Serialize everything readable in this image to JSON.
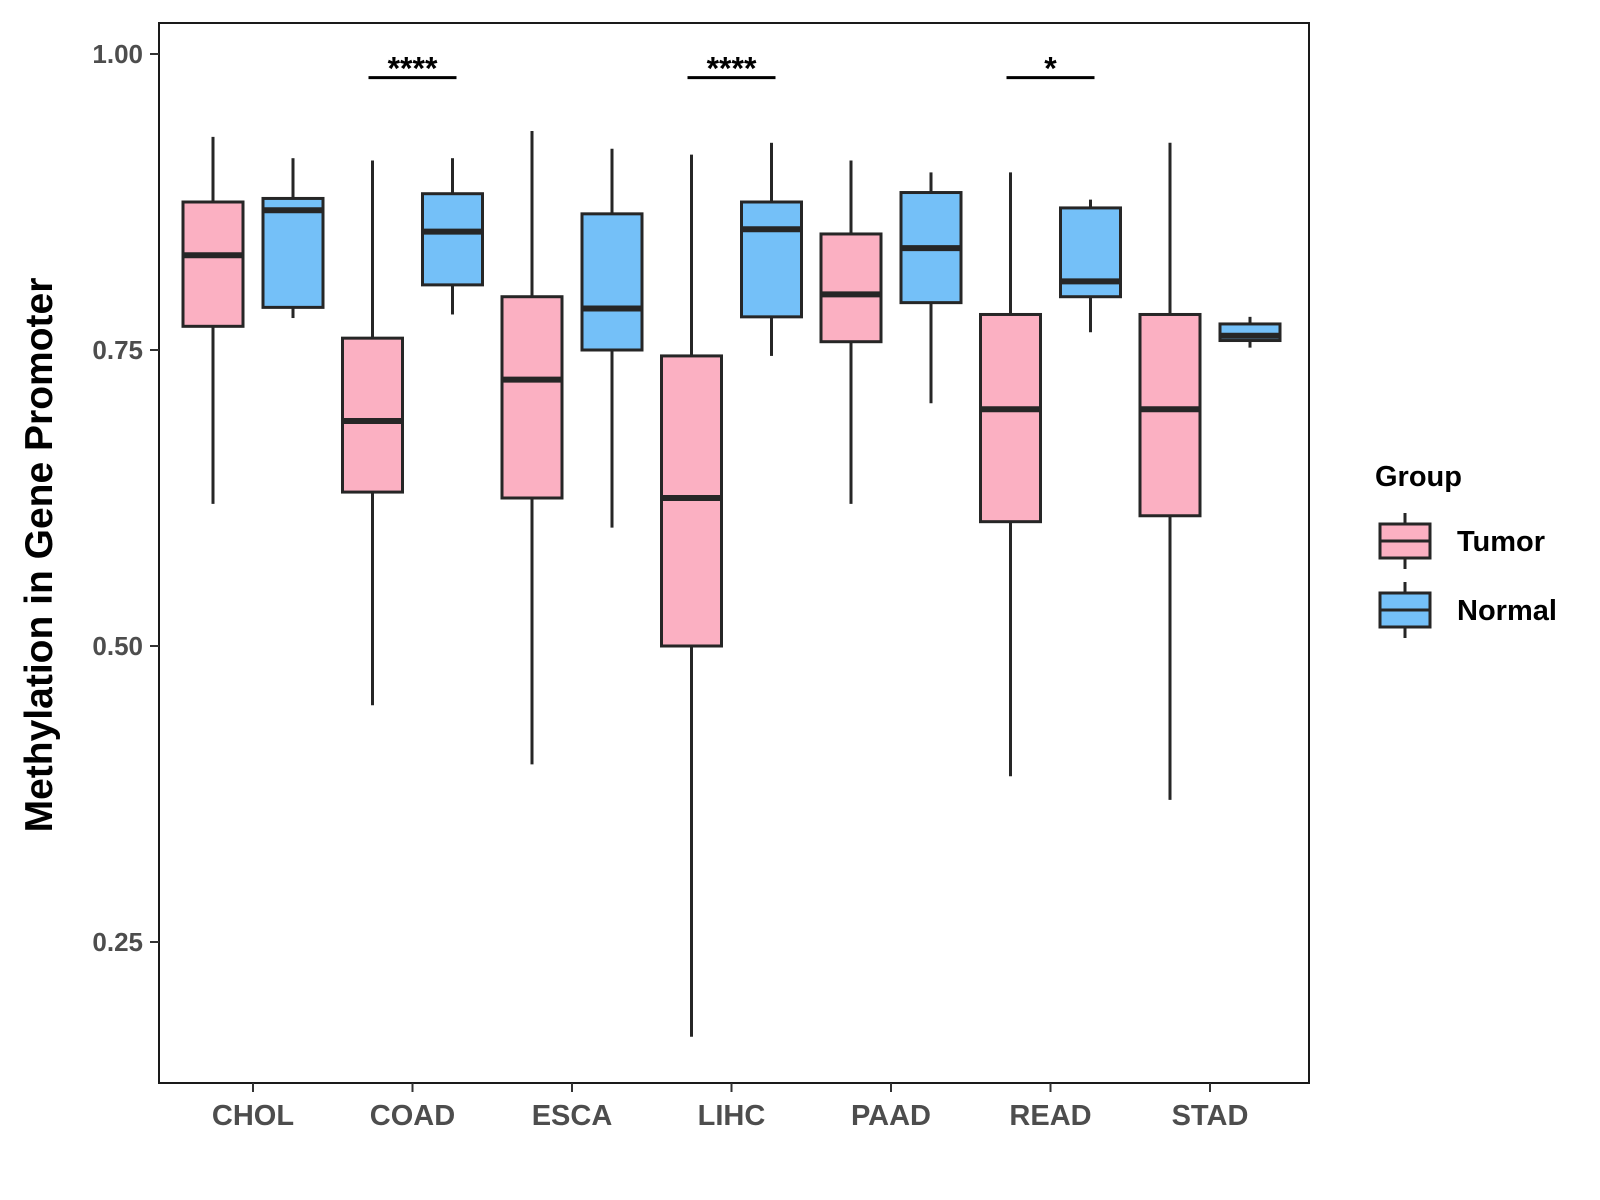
{
  "chart_data": {
    "type": "boxplot",
    "title": "",
    "xlabel": "",
    "ylabel": "Methylation in Gene Promoter",
    "ylim": [
      0.12,
      1.03
    ],
    "yticks": [
      0.25,
      0.5,
      0.75,
      1.0
    ],
    "ytick_labels": [
      "0.25",
      "0.50",
      "0.75",
      "1.00"
    ],
    "categories": [
      "CHOL",
      "COAD",
      "ESCA",
      "LIHC",
      "PAAD",
      "READ",
      "STAD"
    ],
    "legend": {
      "title": "Group",
      "position": "right",
      "items": [
        {
          "name": "Tumor",
          "color": "#fbb0c2"
        },
        {
          "name": "Normal",
          "color": "#74c0f8"
        }
      ]
    },
    "series": [
      {
        "name": "Tumor",
        "color": "#fbb0c2",
        "boxes": [
          {
            "category": "CHOL",
            "min": 0.62,
            "q1": 0.77,
            "median": 0.83,
            "q3": 0.875,
            "max": 0.93
          },
          {
            "category": "COAD",
            "min": 0.45,
            "q1": 0.63,
            "median": 0.69,
            "q3": 0.76,
            "max": 0.91
          },
          {
            "category": "ESCA",
            "min": 0.4,
            "q1": 0.625,
            "median": 0.725,
            "q3": 0.795,
            "max": 0.935
          },
          {
            "category": "LIHC",
            "min": 0.17,
            "q1": 0.5,
            "median": 0.625,
            "q3": 0.745,
            "max": 0.915
          },
          {
            "category": "PAAD",
            "min": 0.62,
            "q1": 0.757,
            "median": 0.797,
            "q3": 0.848,
            "max": 0.91
          },
          {
            "category": "READ",
            "min": 0.39,
            "q1": 0.605,
            "median": 0.7,
            "q3": 0.78,
            "max": 0.9
          },
          {
            "category": "STAD",
            "min": 0.37,
            "q1": 0.61,
            "median": 0.7,
            "q3": 0.78,
            "max": 0.925
          }
        ]
      },
      {
        "name": "Normal",
        "color": "#74c0f8",
        "boxes": [
          {
            "category": "CHOL",
            "min": 0.777,
            "q1": 0.786,
            "median": 0.868,
            "q3": 0.878,
            "max": 0.912
          },
          {
            "category": "COAD",
            "min": 0.78,
            "q1": 0.805,
            "median": 0.85,
            "q3": 0.882,
            "max": 0.912
          },
          {
            "category": "ESCA",
            "min": 0.6,
            "q1": 0.75,
            "median": 0.785,
            "q3": 0.865,
            "max": 0.92
          },
          {
            "category": "LIHC",
            "min": 0.745,
            "q1": 0.778,
            "median": 0.852,
            "q3": 0.875,
            "max": 0.925
          },
          {
            "category": "PAAD",
            "min": 0.705,
            "q1": 0.79,
            "median": 0.836,
            "q3": 0.883,
            "max": 0.9
          },
          {
            "category": "READ",
            "min": 0.765,
            "q1": 0.795,
            "median": 0.808,
            "q3": 0.87,
            "max": 0.877
          },
          {
            "category": "STAD",
            "min": 0.752,
            "q1": 0.758,
            "median": 0.762,
            "q3": 0.772,
            "max": 0.778
          }
        ]
      }
    ],
    "annotations": [
      {
        "category": "COAD",
        "label": "****",
        "y": 0.98
      },
      {
        "category": "LIHC",
        "label": "****",
        "y": 0.98
      },
      {
        "category": "READ",
        "label": "*",
        "y": 0.98
      }
    ]
  }
}
